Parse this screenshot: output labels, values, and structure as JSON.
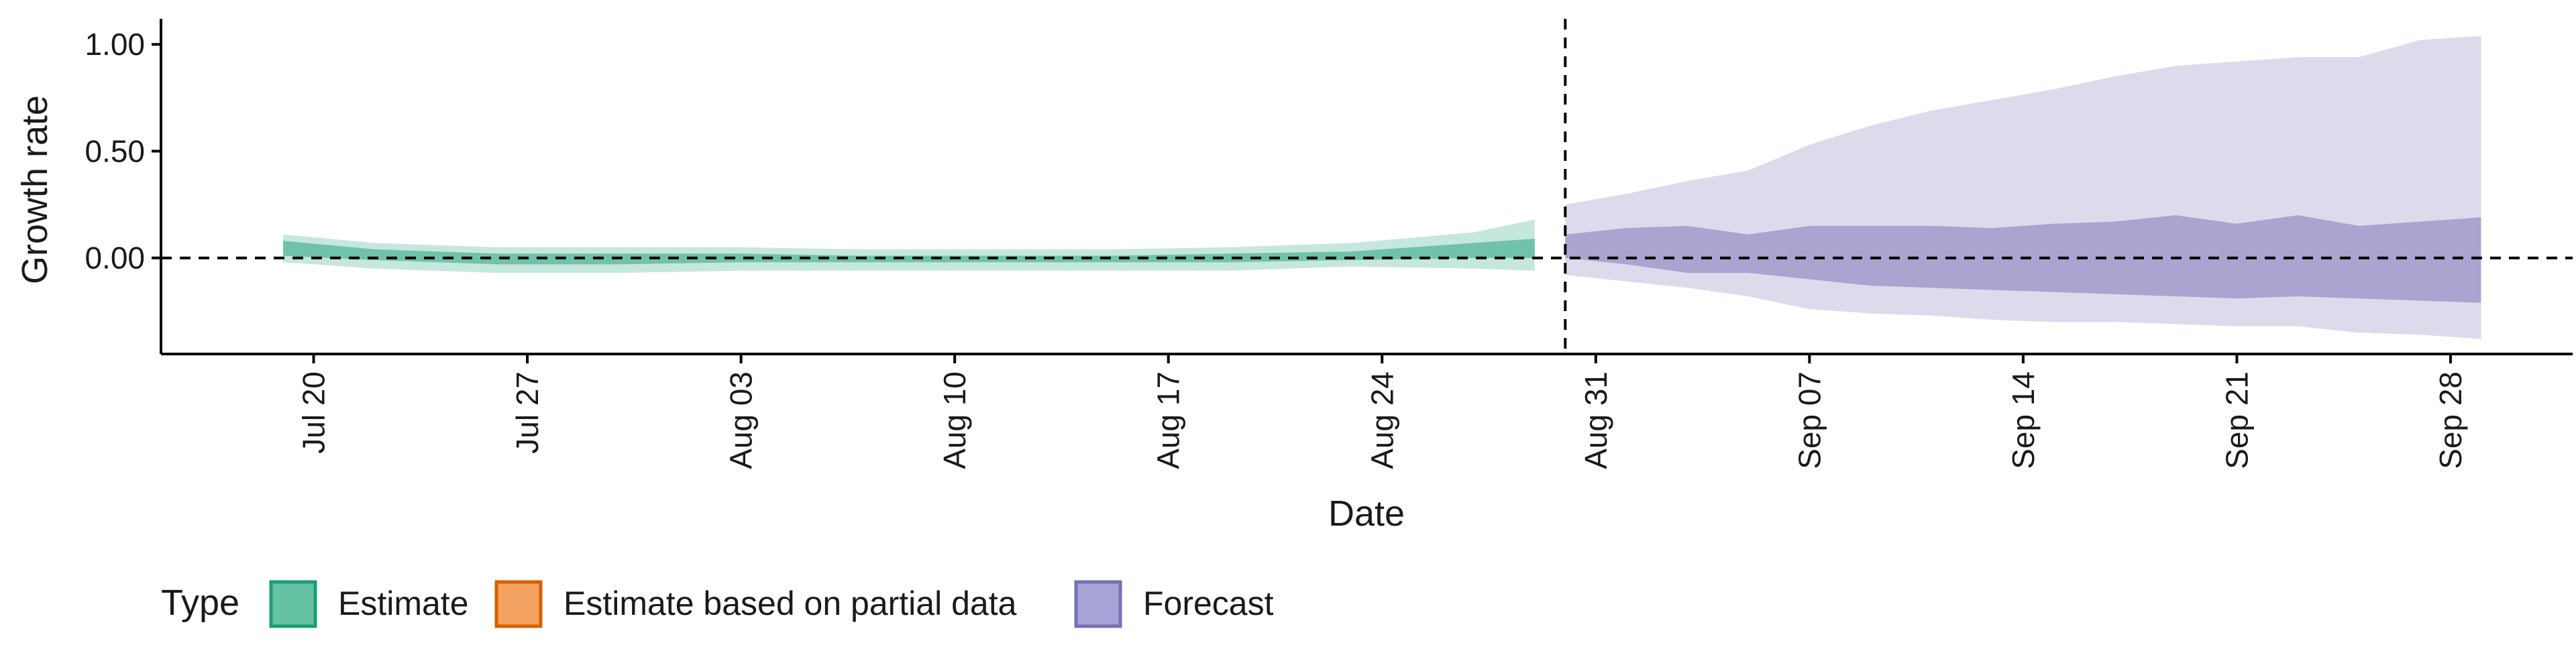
{
  "chart_data": {
    "type": "area",
    "title": "",
    "xlabel": "Date",
    "ylabel": "Growth rate",
    "x_ticks": [
      "Jul 20",
      "Jul 27",
      "Aug 03",
      "Aug 10",
      "Aug 17",
      "Aug 24",
      "Aug 31",
      "Sep 07",
      "Sep 14",
      "Sep 21",
      "Sep 28"
    ],
    "x_tick_dates": [
      "2020-07-20",
      "2020-07-27",
      "2020-08-03",
      "2020-08-10",
      "2020-08-17",
      "2020-08-24",
      "2020-08-31",
      "2020-09-07",
      "2020-09-14",
      "2020-09-21",
      "2020-09-28"
    ],
    "y_ticks": [
      "0.00",
      "0.50",
      "1.00"
    ],
    "y_tick_values": [
      0,
      0.5,
      1.0
    ],
    "xlim": [
      "2020-07-15",
      "2020-10-02"
    ],
    "ylim": [
      -0.45,
      1.12
    ],
    "grid": false,
    "reference_lines": [
      {
        "axis": "y",
        "value": 0,
        "style": "dashed"
      },
      {
        "axis": "x",
        "value": "2020-08-30",
        "style": "dashed"
      }
    ],
    "legend": {
      "title": "Type",
      "position": "bottom-left",
      "entries": [
        {
          "label": "Estimate",
          "fill": "#66c2a5",
          "stroke": "#1b9e77"
        },
        {
          "label": "Estimate based on partial data",
          "fill": "#f4a261",
          "stroke": "#d95f02"
        },
        {
          "label": "Forecast",
          "fill": "#a6a3d6",
          "stroke": "#7570b3"
        }
      ]
    },
    "series": [
      {
        "type": "Estimate",
        "color": "#1b9e77",
        "x": [
          "2020-07-19",
          "2020-07-22",
          "2020-07-26",
          "2020-07-30",
          "2020-08-03",
          "2020-08-07",
          "2020-08-11",
          "2020-08-15",
          "2020-08-19",
          "2020-08-23",
          "2020-08-27",
          "2020-08-29"
        ],
        "lower_90": [
          -0.02,
          -0.05,
          -0.07,
          -0.07,
          -0.06,
          -0.06,
          -0.06,
          -0.06,
          -0.06,
          -0.04,
          -0.05,
          -0.06
        ],
        "upper_90": [
          0.11,
          0.07,
          0.05,
          0.05,
          0.05,
          0.04,
          0.04,
          0.04,
          0.05,
          0.07,
          0.12,
          0.18
        ],
        "lower_50": [
          0.01,
          -0.01,
          -0.03,
          -0.03,
          -0.02,
          -0.02,
          -0.02,
          -0.02,
          -0.02,
          -0.01,
          0.0,
          0.0
        ],
        "upper_50": [
          0.08,
          0.04,
          0.02,
          0.02,
          0.02,
          0.01,
          0.01,
          0.01,
          0.02,
          0.03,
          0.07,
          0.09
        ]
      },
      {
        "type": "Forecast",
        "color": "#7570b3",
        "x": [
          "2020-08-30",
          "2020-09-01",
          "2020-09-03",
          "2020-09-05",
          "2020-09-07",
          "2020-09-09",
          "2020-09-11",
          "2020-09-13",
          "2020-09-15",
          "2020-09-17",
          "2020-09-19",
          "2020-09-21",
          "2020-09-23",
          "2020-09-25",
          "2020-09-27",
          "2020-09-29"
        ],
        "lower_90": [
          -0.08,
          -0.11,
          -0.14,
          -0.18,
          -0.24,
          -0.26,
          -0.27,
          -0.29,
          -0.3,
          -0.3,
          -0.31,
          -0.32,
          -0.32,
          -0.35,
          -0.36,
          -0.38
        ],
        "upper_90": [
          0.25,
          0.3,
          0.36,
          0.41,
          0.53,
          0.62,
          0.69,
          0.74,
          0.79,
          0.85,
          0.9,
          0.92,
          0.94,
          0.94,
          1.02,
          1.04
        ],
        "lower_50": [
          0.0,
          -0.03,
          -0.07,
          -0.07,
          -0.1,
          -0.13,
          -0.14,
          -0.15,
          -0.16,
          -0.17,
          -0.18,
          -0.19,
          -0.18,
          -0.19,
          -0.2,
          -0.21
        ],
        "upper_50": [
          0.11,
          0.14,
          0.15,
          0.11,
          0.15,
          0.15,
          0.15,
          0.14,
          0.16,
          0.17,
          0.2,
          0.16,
          0.2,
          0.15,
          0.17,
          0.19
        ]
      }
    ]
  }
}
